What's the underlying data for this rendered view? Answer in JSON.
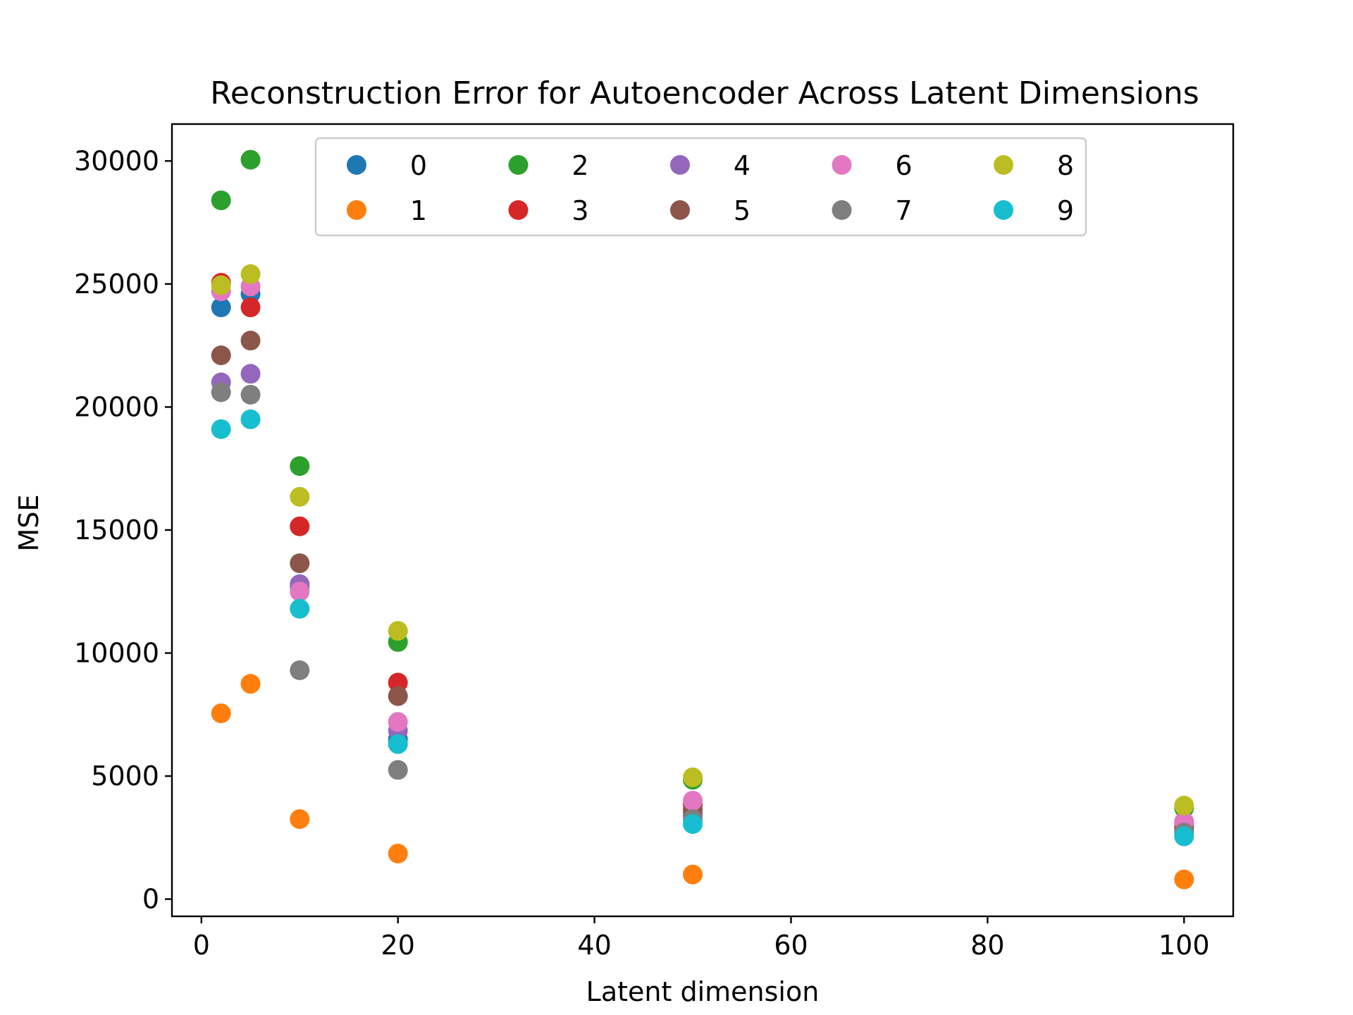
{
  "chart_data": {
    "type": "scatter",
    "title": "Reconstruction Error for Autoencoder Across Latent Dimensions",
    "xlabel": "Latent dimension",
    "ylabel": "MSE",
    "xlim": [
      -3,
      105
    ],
    "ylim": [
      -700,
      31500
    ],
    "xticks": [
      0,
      20,
      40,
      60,
      80,
      100
    ],
    "yticks": [
      0,
      5000,
      10000,
      15000,
      20000,
      25000,
      30000
    ],
    "grid": false,
    "legend": {
      "placement": "top-center",
      "columns": 5
    },
    "x": [
      2,
      5,
      10,
      20,
      50,
      100
    ],
    "series": [
      {
        "name": "0",
        "color": "#1f77b4",
        "values": [
          24050,
          24600,
          12700,
          6500,
          3400,
          2800
        ]
      },
      {
        "name": "1",
        "color": "#ff7f0e",
        "values": [
          7550,
          8750,
          3250,
          1850,
          1000,
          800
        ]
      },
      {
        "name": "2",
        "color": "#2ca02c",
        "values": [
          28400,
          30050,
          17600,
          10450,
          4850,
          3700
        ]
      },
      {
        "name": "3",
        "color": "#d62728",
        "values": [
          25050,
          24050,
          15150,
          8800,
          3850,
          3100
        ]
      },
      {
        "name": "4",
        "color": "#9467bd",
        "values": [
          21000,
          21350,
          12800,
          6850,
          3500,
          2900
        ]
      },
      {
        "name": "5",
        "color": "#8c564b",
        "values": [
          22100,
          22700,
          13650,
          8250,
          3650,
          2950
        ]
      },
      {
        "name": "6",
        "color": "#e377c2",
        "values": [
          24700,
          24900,
          12500,
          7200,
          4000,
          3150
        ]
      },
      {
        "name": "7",
        "color": "#7f7f7f",
        "values": [
          20600,
          20500,
          9300,
          5250,
          3250,
          2700
        ]
      },
      {
        "name": "8",
        "color": "#bcbd22",
        "values": [
          24950,
          25400,
          16350,
          10900,
          4950,
          3800
        ]
      },
      {
        "name": "9",
        "color": "#17becf",
        "values": [
          19100,
          19500,
          11800,
          6300,
          3050,
          2550
        ]
      }
    ]
  }
}
